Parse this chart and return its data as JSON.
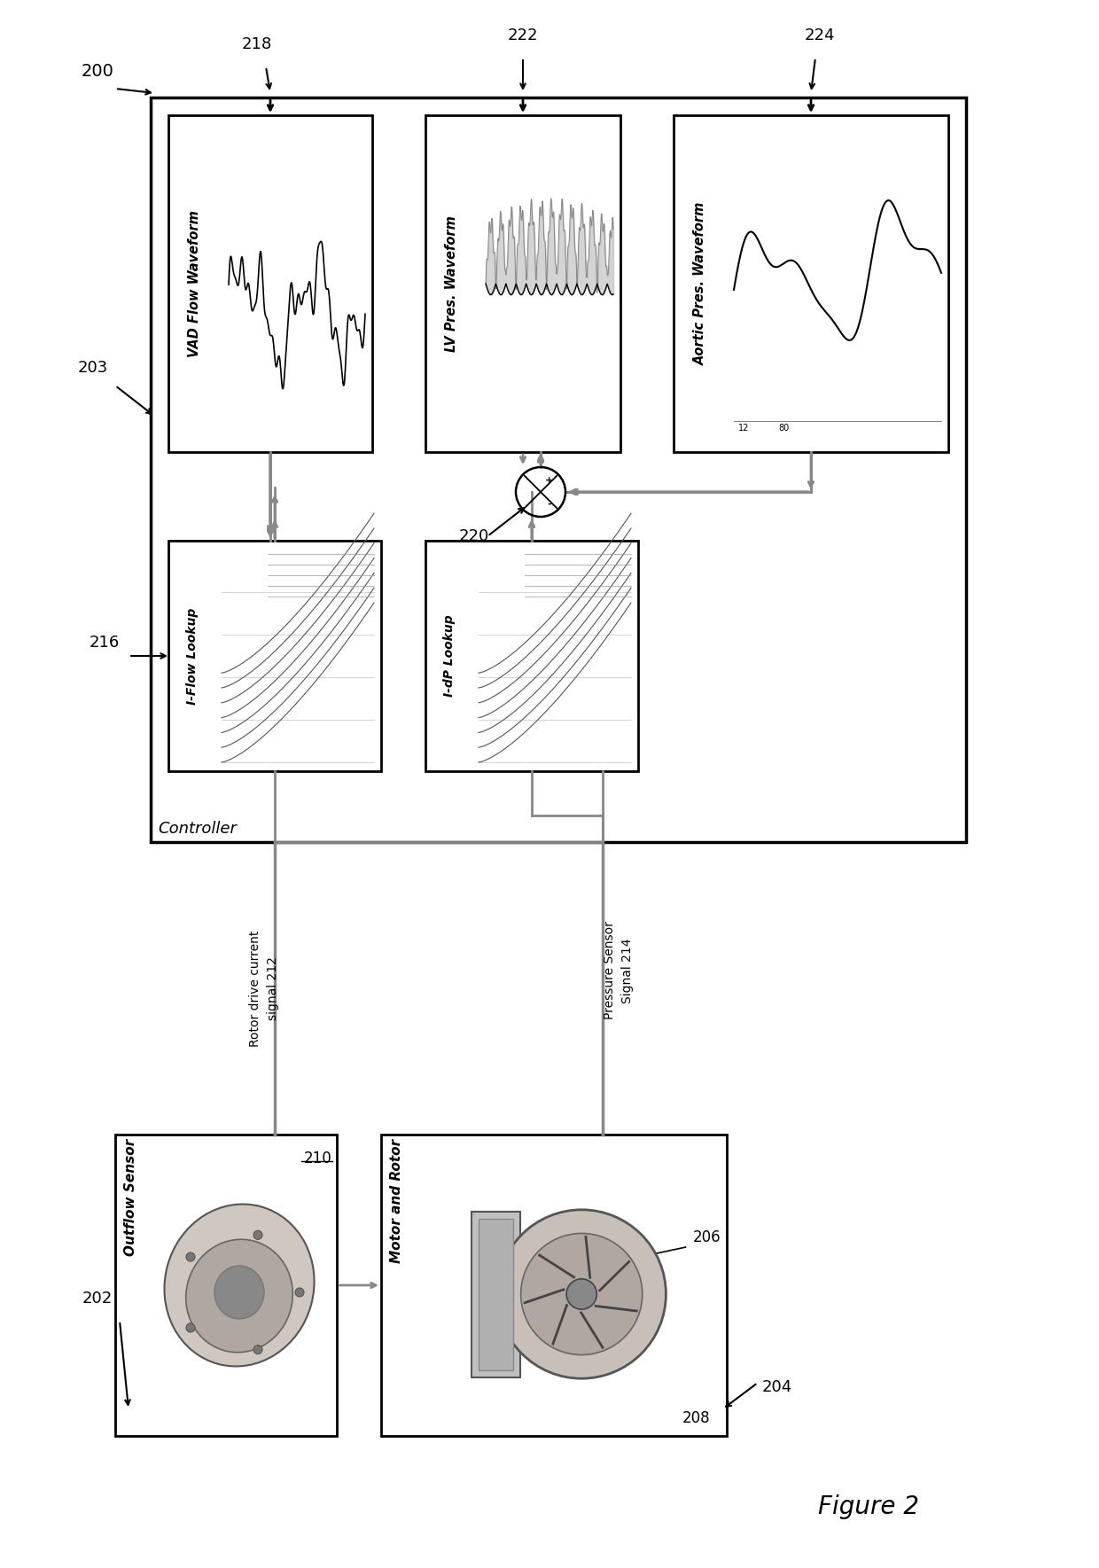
{
  "bg_color": "#ffffff",
  "line_color": "#888888",
  "dark_color": "#444444",
  "box_titles": {
    "vad": "VAD Flow Waveform",
    "lv": "LV Pres. Waveform",
    "aortic": "Aortic Pres. Waveform",
    "i_flow": "I-Flow Lookup",
    "i_dp": "I-dP Lookup",
    "outflow": "Outflow Sensor",
    "motor": "Motor and Rotor",
    "controller": "Controller"
  },
  "ref_labels": {
    "r200": "200",
    "r202": "202",
    "r203": "203",
    "r204": "204",
    "r206": "206",
    "r208": "208",
    "r210": "210",
    "r212": "212",
    "r214": "214",
    "r216": "216",
    "r218": "218",
    "r220": "220",
    "r222": "222",
    "r224": "224"
  },
  "signal_labels": {
    "rotor": "Rotor drive current\nsignal",
    "pressure": "Pressure Sensor\nSignal"
  },
  "figure_label": "Figure 2"
}
